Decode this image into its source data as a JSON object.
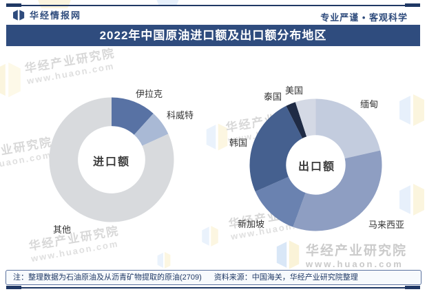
{
  "header": {
    "brand": "华经情报网",
    "slogan": "专业严谨 • 客观科学"
  },
  "title": "2022年中国原油进口额及出口额分布地区",
  "footer": {
    "note": "注：整理数据为石油原油及从沥青矿物提取的原油(2709)",
    "source": "资料来源：中国海关，华经产业研究院整理"
  },
  "watermark": {
    "cn": "华经产业研究院",
    "url": "www.huaon.com"
  },
  "theme_colors": {
    "navy_rule": "#1F3864",
    "title_bar_bg": "#2F4C7E",
    "header_text": "#2E4B7C",
    "label_text": "#333333",
    "watermark_gray": "#D8D8D8",
    "footer_bg": "#F7FAFD"
  },
  "chart_data": [
    {
      "type": "pie",
      "subtype": "donut",
      "center_label": "进口额",
      "categories": [
        "伊拉克",
        "科威特",
        "其他"
      ],
      "values": [
        11.7,
        6.5,
        81.8
      ],
      "values_unit": "percent_share_estimated",
      "colors": [
        "#5872A4",
        "#A9B9D5",
        "#D8DADD"
      ],
      "start_angle_deg": 0,
      "clockwise": true,
      "inner_ratio": 0.54,
      "legend": "none",
      "data_labels": "category names outside slices"
    },
    {
      "type": "pie",
      "subtype": "donut",
      "center_label": "出口额",
      "categories": [
        "缅甸",
        "马来西亚",
        "新加坡",
        "韩国",
        "泰国",
        "美国"
      ],
      "values": [
        21.5,
        34.1,
        12.8,
        24.2,
        2.4,
        5.0
      ],
      "values_unit": "percent_share_estimated",
      "colors": [
        "#C3CCDE",
        "#8E9EC2",
        "#6A82B0",
        "#45608F",
        "#1F2B45",
        "#D4D9E5"
      ],
      "start_angle_deg": 0,
      "clockwise": true,
      "inner_ratio": 0.45,
      "legend": "none",
      "data_labels": "category names outside slices"
    }
  ]
}
